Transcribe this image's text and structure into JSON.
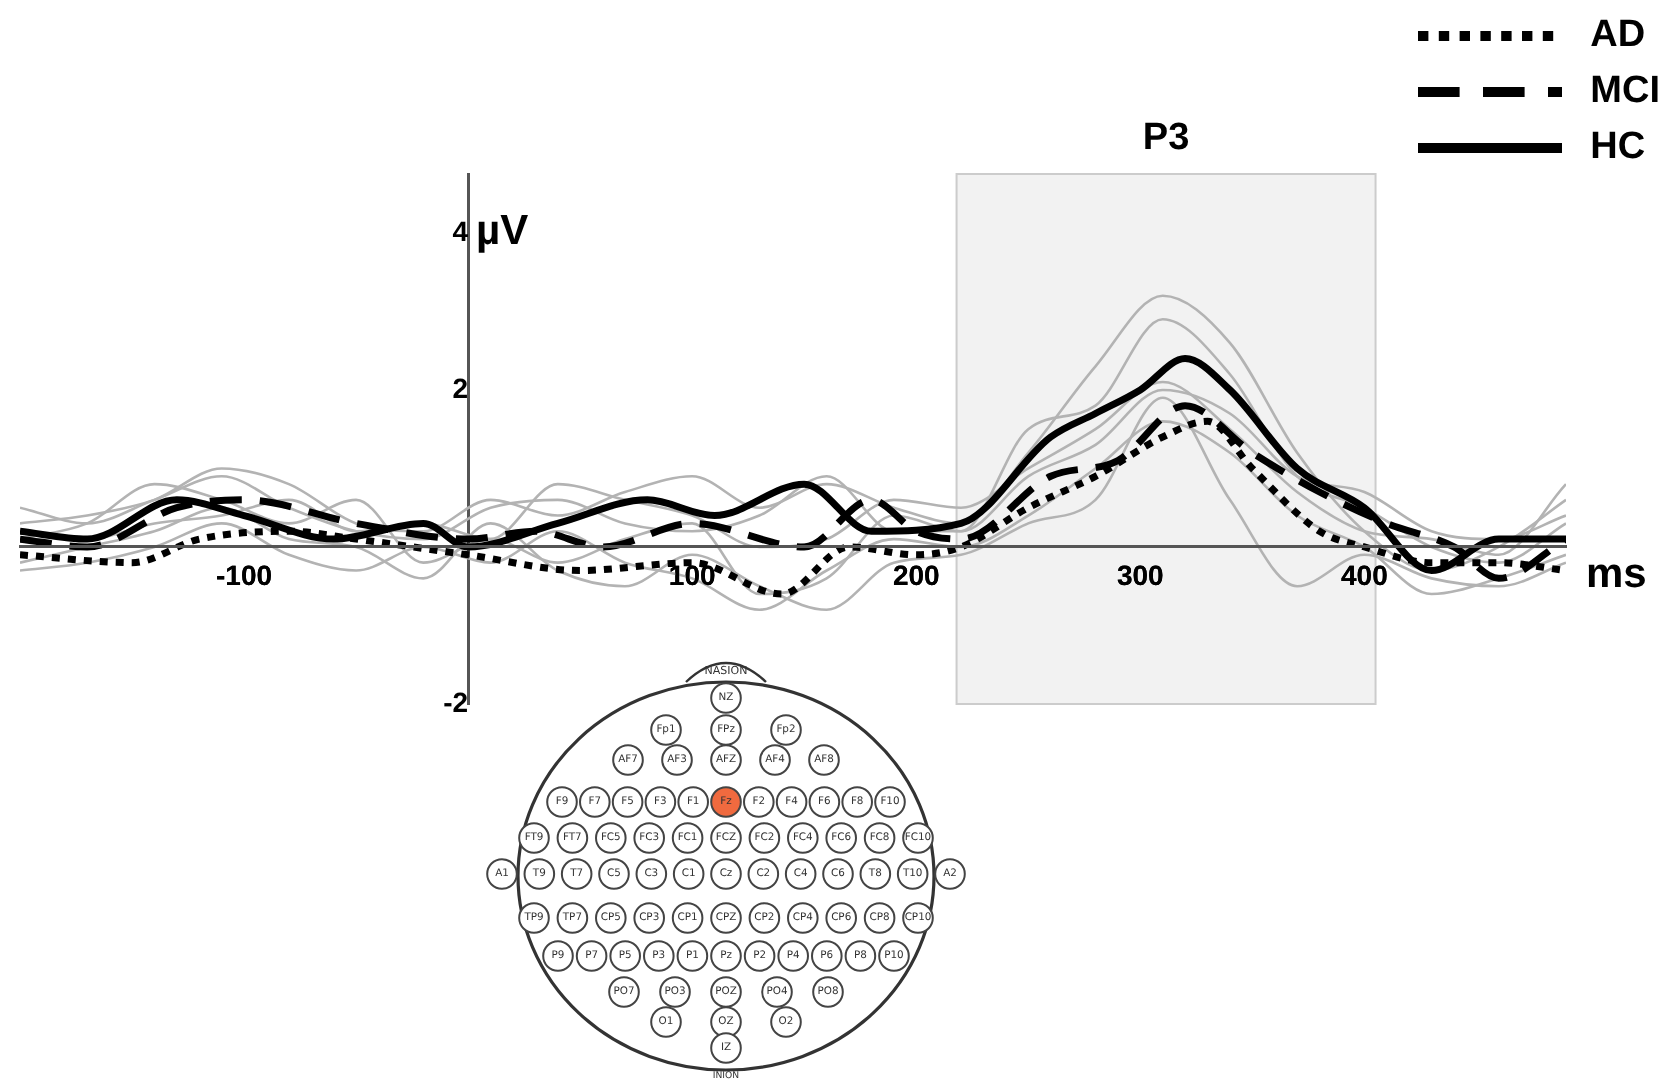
{
  "chart_data": {
    "type": "line",
    "xlabel": "ms",
    "ylabel": "µV",
    "xlim": [
      -200,
      490
    ],
    "ylim": [
      -2,
      4.75
    ],
    "xticks": [
      -100,
      100,
      200,
      300,
      400
    ],
    "yticks": [
      -2,
      2,
      4
    ],
    "grid": false,
    "legend": "top right",
    "marker": "none",
    "bands": [
      {
        "axis": "x",
        "from": 218,
        "to": 405,
        "label": "P3",
        "color": "#f2f2f2"
      }
    ],
    "series": [
      {
        "color": "#b3b3b3",
        "x": [
          -200,
          -170,
          -140,
          -110,
          -80,
          -50,
          -20,
          10,
          40,
          70,
          100,
          130,
          160,
          190,
          220,
          250,
          280,
          310,
          340,
          370,
          400,
          430,
          460,
          490
        ],
        "values": [
          0.3,
          0.4,
          0.6,
          1.0,
          0.8,
          0.3,
          0.2,
          0.6,
          0.4,
          0.7,
          0.9,
          0.5,
          0.8,
          0.5,
          0.3,
          1.2,
          2.3,
          3.2,
          2.6,
          1.2,
          0.2,
          -0.3,
          0.0,
          0.6
        ]
      },
      {
        "color": "#b3b3b3",
        "x": [
          -200,
          -170,
          -140,
          -110,
          -80,
          -50,
          -20,
          10,
          40,
          70,
          100,
          130,
          160,
          190,
          220,
          250,
          280,
          310,
          340,
          370,
          400,
          430,
          460,
          490
        ],
        "values": [
          0.1,
          0.3,
          0.8,
          0.6,
          0.3,
          0.6,
          -0.2,
          0.1,
          -0.2,
          0.1,
          0.3,
          -0.6,
          -0.4,
          0.4,
          0.2,
          1.5,
          1.8,
          2.9,
          2.2,
          0.9,
          0.5,
          0.0,
          -0.2,
          0.3
        ]
      },
      {
        "color": "#b3b3b3",
        "x": [
          -200,
          -170,
          -140,
          -110,
          -80,
          -50,
          -20,
          10,
          40,
          70,
          100,
          130,
          160,
          190,
          220,
          250,
          280,
          310,
          340,
          370,
          400,
          430,
          460,
          490
        ],
        "values": [
          -0.2,
          0.0,
          0.2,
          0.5,
          0.1,
          0.0,
          -0.4,
          0.3,
          -0.3,
          -0.5,
          -0.1,
          -0.5,
          -0.8,
          -0.2,
          -0.1,
          0.3,
          0.6,
          1.9,
          0.6,
          -0.5,
          -0.1,
          -0.4,
          -0.5,
          -0.2
        ]
      },
      {
        "color": "#b3b3b3",
        "x": [
          -200,
          -170,
          -140,
          -110,
          -80,
          -50,
          -20,
          10,
          40,
          70,
          100,
          130,
          160,
          190,
          220,
          250,
          280,
          310,
          340,
          370,
          400,
          430,
          460,
          490
        ],
        "values": [
          0.5,
          0.3,
          0.6,
          0.9,
          0.5,
          0.2,
          0.1,
          0.5,
          0.6,
          0.3,
          0.2,
          0.4,
          0.9,
          0.2,
          0.2,
          0.9,
          1.3,
          2.0,
          1.7,
          0.9,
          0.7,
          0.2,
          0.1,
          0.4
        ]
      },
      {
        "color": "#b3b3b3",
        "x": [
          -200,
          -170,
          -140,
          -110,
          -80,
          -50,
          -20,
          10,
          40,
          70,
          100,
          130,
          160,
          190,
          220,
          250,
          280,
          310,
          340,
          370,
          400,
          430,
          460,
          490
        ],
        "values": [
          0.2,
          0.1,
          0.3,
          0.4,
          0.6,
          0.2,
          0.3,
          0.1,
          0.8,
          0.6,
          0.4,
          0.0,
          0.1,
          0.6,
          0.5,
          1.0,
          1.5,
          2.1,
          1.5,
          0.7,
          0.2,
          0.1,
          -0.1,
          0.8
        ]
      },
      {
        "color": "#b3b3b3",
        "x": [
          -200,
          -170,
          -140,
          -110,
          -80,
          -50,
          -20,
          10,
          40,
          70,
          100,
          130,
          160,
          190,
          220,
          250,
          280,
          310,
          340,
          370,
          400,
          430,
          460,
          490
        ],
        "values": [
          -0.3,
          -0.2,
          0.0,
          0.3,
          -0.1,
          -0.3,
          0.0,
          -0.2,
          0.2,
          -0.2,
          -0.4,
          -0.8,
          -0.3,
          0.1,
          0.0,
          0.4,
          1.0,
          1.6,
          1.2,
          0.4,
          0.0,
          -0.6,
          -0.4,
          -0.1
        ]
      },
      {
        "name": "AD",
        "color": "#000000",
        "line_style": "dotted",
        "x": [
          -200,
          -150,
          -120,
          -80,
          -50,
          0,
          50,
          100,
          140,
          170,
          200,
          220,
          250,
          280,
          310,
          330,
          350,
          380,
          400,
          430,
          460,
          490
        ],
        "values": [
          -0.1,
          -0.2,
          0.1,
          0.2,
          0.1,
          -0.1,
          -0.3,
          -0.2,
          -0.6,
          0.0,
          -0.1,
          0.0,
          0.5,
          0.9,
          1.4,
          1.6,
          1.0,
          0.2,
          0.0,
          -0.2,
          -0.2,
          -0.3
        ]
      },
      {
        "name": "MCI",
        "color": "#000000",
        "line_style": "dashed",
        "x": [
          -200,
          -170,
          -130,
          -100,
          -50,
          0,
          30,
          60,
          100,
          150,
          180,
          200,
          220,
          260,
          290,
          320,
          350,
          380,
          410,
          440,
          460,
          490
        ],
        "values": [
          0.1,
          0.0,
          0.5,
          0.6,
          0.3,
          0.1,
          0.2,
          0.0,
          0.3,
          0.0,
          0.6,
          0.2,
          0.1,
          0.9,
          1.1,
          1.8,
          1.2,
          0.7,
          0.3,
          0.0,
          -0.4,
          0.1
        ]
      },
      {
        "name": "HC",
        "color": "#000000",
        "line_style": "solid",
        "x": [
          -200,
          -170,
          -130,
          -100,
          -60,
          -20,
          0,
          40,
          80,
          110,
          150,
          180,
          220,
          260,
          280,
          300,
          320,
          340,
          370,
          400,
          430,
          460,
          490
        ],
        "values": [
          0.2,
          0.1,
          0.6,
          0.4,
          0.1,
          0.3,
          0.0,
          0.3,
          0.6,
          0.4,
          0.8,
          0.2,
          0.3,
          1.4,
          1.7,
          2.0,
          2.4,
          2.0,
          1.0,
          0.5,
          -0.3,
          0.1,
          0.1
        ]
      }
    ],
    "annotations": [
      "NASION",
      "NZ",
      "Fp1",
      "FPz",
      "Fp2",
      "AF7",
      "AF3",
      "AFZ",
      "AF4",
      "AF8",
      "F9",
      "F7",
      "F5",
      "F3",
      "F1",
      "Fz",
      "F2",
      "F4",
      "F6",
      "F8",
      "F10",
      "FT9",
      "FT7",
      "FC5",
      "FC3",
      "FC1",
      "FCZ",
      "FC2",
      "FC4",
      "FC6",
      "FC8",
      "FC10",
      "A1",
      "T9",
      "T7",
      "C5",
      "C3",
      "C1",
      "Cz",
      "C2",
      "C4",
      "C6",
      "T8",
      "T10",
      "A2",
      "TP9",
      "TP7",
      "CP5",
      "CP3",
      "CP1",
      "CPZ",
      "CP2",
      "CP4",
      "CP6",
      "CP8",
      "CP10",
      "P9",
      "P7",
      "P5",
      "P3",
      "P1",
      "Pz",
      "P2",
      "P4",
      "P6",
      "P8",
      "P10",
      "PO7",
      "PO3",
      "POZ",
      "PO4",
      "PO8",
      "O1",
      "OZ",
      "O2",
      "IZ",
      "INION"
    ]
  }
}
